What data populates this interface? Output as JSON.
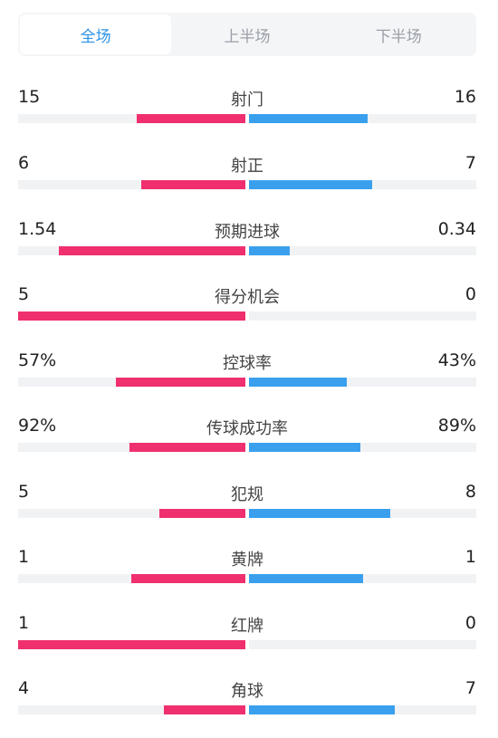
{
  "tabs": [
    {
      "label": "全场",
      "active": true
    },
    {
      "label": "上半场",
      "active": false
    },
    {
      "label": "下半场",
      "active": false
    }
  ],
  "colors": {
    "home": "#ef2f6e",
    "away": "#3aa0ee",
    "track": "#f1f2f4",
    "active_tab": "#2b93e6"
  },
  "stats": [
    {
      "label": "射门",
      "left": "15",
      "right": "16",
      "left_fill": 0.48,
      "right_fill": 0.52
    },
    {
      "label": "射正",
      "left": "6",
      "right": "7",
      "left_fill": 0.46,
      "right_fill": 0.54
    },
    {
      "label": "预期进球",
      "left": "1.54",
      "right": "0.34",
      "left_fill": 0.82,
      "right_fill": 0.18
    },
    {
      "label": "得分机会",
      "left": "5",
      "right": "0",
      "left_fill": 1.0,
      "right_fill": 0.0
    },
    {
      "label": "控球率",
      "left": "57%",
      "right": "43%",
      "left_fill": 0.57,
      "right_fill": 0.43
    },
    {
      "label": "传球成功率",
      "left": "92%",
      "right": "89%",
      "left_fill": 0.51,
      "right_fill": 0.49
    },
    {
      "label": "犯规",
      "left": "5",
      "right": "8",
      "left_fill": 0.38,
      "right_fill": 0.62
    },
    {
      "label": "黄牌",
      "left": "1",
      "right": "1",
      "left_fill": 0.5,
      "right_fill": 0.5
    },
    {
      "label": "红牌",
      "left": "1",
      "right": "0",
      "left_fill": 1.0,
      "right_fill": 0.0
    },
    {
      "label": "角球",
      "left": "4",
      "right": "7",
      "left_fill": 0.36,
      "right_fill": 0.64
    }
  ]
}
